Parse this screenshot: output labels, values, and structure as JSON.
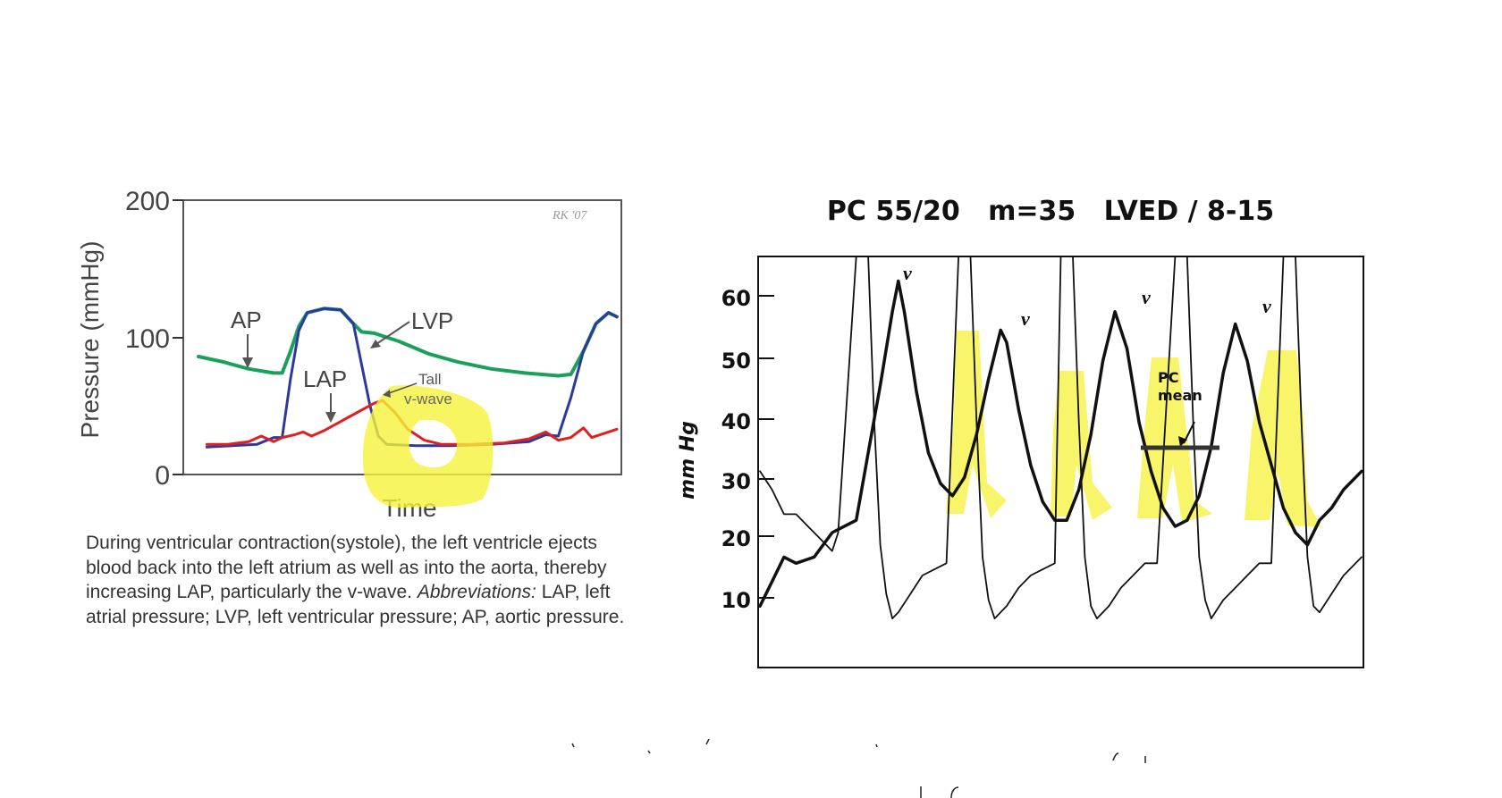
{
  "left_chart": {
    "chart_data": {
      "type": "line",
      "title": "",
      "xlabel": "Time",
      "ylabel": "Pressure (mmHg)",
      "ylim": [
        0,
        200
      ],
      "yticks": [
        "0",
        "100",
        "200"
      ],
      "grid": false,
      "signature": "RK '07",
      "series": [
        {
          "name": "AP",
          "color": "#1aa05a",
          "points": [
            [
              0,
              86
            ],
            [
              6,
              82
            ],
            [
              12,
              77
            ],
            [
              18,
              74
            ],
            [
              20,
              74
            ],
            [
              22,
              90
            ],
            [
              24,
              108
            ],
            [
              26,
              118
            ],
            [
              30,
              121
            ],
            [
              34,
              120
            ],
            [
              37,
              110
            ],
            [
              39,
              104
            ],
            [
              42,
              103
            ],
            [
              48,
              97
            ],
            [
              55,
              88
            ],
            [
              62,
              82
            ],
            [
              70,
              77
            ],
            [
              78,
              74
            ],
            [
              86,
              72
            ],
            [
              89,
              73
            ],
            [
              92,
              90
            ],
            [
              95,
              110
            ],
            [
              98,
              118
            ],
            [
              100,
              115
            ]
          ]
        },
        {
          "name": "LVP",
          "color": "#2d3a9c",
          "points": [
            [
              2,
              20
            ],
            [
              8,
              21
            ],
            [
              14,
              22
            ],
            [
              18,
              27
            ],
            [
              20,
              27
            ],
            [
              22,
              70
            ],
            [
              24,
              105
            ],
            [
              26,
              118
            ],
            [
              30,
              121
            ],
            [
              34,
              120
            ],
            [
              37,
              110
            ],
            [
              39,
              80
            ],
            [
              41,
              50
            ],
            [
              43,
              28
            ],
            [
              45,
              22
            ],
            [
              52,
              21
            ],
            [
              60,
              21
            ],
            [
              70,
              22
            ],
            [
              79,
              24
            ],
            [
              83,
              29
            ],
            [
              86,
              28
            ],
            [
              89,
              56
            ],
            [
              92,
              90
            ],
            [
              95,
              110
            ],
            [
              98,
              118
            ],
            [
              100,
              115
            ]
          ]
        },
        {
          "name": "LAP",
          "color": "#e02020",
          "points": [
            [
              2,
              22
            ],
            [
              7,
              22
            ],
            [
              12,
              24
            ],
            [
              15,
              28
            ],
            [
              18,
              24
            ],
            [
              20,
              27
            ],
            [
              23,
              29
            ],
            [
              25,
              31
            ],
            [
              27,
              28
            ],
            [
              30,
              32
            ],
            [
              36,
              42
            ],
            [
              42,
              52
            ],
            [
              44,
              54
            ],
            [
              47,
              45
            ],
            [
              50,
              33
            ],
            [
              54,
              25
            ],
            [
              58,
              22
            ],
            [
              65,
              22
            ],
            [
              73,
              23
            ],
            [
              79,
              26
            ],
            [
              83,
              31
            ],
            [
              86,
              25
            ],
            [
              89,
              27
            ],
            [
              92,
              34
            ],
            [
              94,
              27
            ],
            [
              97,
              30
            ],
            [
              100,
              33
            ]
          ]
        }
      ],
      "annotations": [
        {
          "text": "AP"
        },
        {
          "text": "LVP"
        },
        {
          "text": "LAP"
        },
        {
          "text": "Tall"
        },
        {
          "text": "v-wave"
        }
      ]
    },
    "caption": {
      "part1": "During ventricular contraction(systole), the left ventricle ejects blood back into the left atrium as well as into the aorta, thereby increasing LAP, particularly the v-wave.",
      "abbr_label": "Abbreviations:",
      "part2": "LAP, left atrial pressure; LVP, left ventricular pressure; AP, aortic pressure."
    }
  },
  "right_chart": {
    "chart_data": {
      "type": "line",
      "title": "PC 55/20   m=35   LVED / 8-15",
      "xlabel": "",
      "ylabel": "mm Hg",
      "ylim": [
        0,
        67
      ],
      "yticks": [
        "10",
        "20",
        "30",
        "40",
        "50",
        "60"
      ],
      "grid": false,
      "series": [
        {
          "name": "",
          "points": [
            [
              0,
              10
            ],
            [
              2,
              14
            ],
            [
              4,
              18
            ],
            [
              6,
              17
            ],
            [
              9,
              18
            ],
            [
              12,
              22
            ],
            [
              14,
              23
            ],
            [
              16,
              24
            ],
            [
              18,
              35
            ],
            [
              20,
              46
            ],
            [
              22,
              58
            ],
            [
              23,
              63
            ],
            [
              24,
              58
            ],
            [
              26,
              45
            ],
            [
              28,
              35
            ],
            [
              30,
              30
            ],
            [
              32,
              28
            ],
            [
              34,
              31
            ],
            [
              36,
              38
            ],
            [
              38,
              47
            ],
            [
              40,
              55
            ],
            [
              41,
              53
            ],
            [
              43,
              42
            ],
            [
              45,
              33
            ],
            [
              47,
              27
            ],
            [
              49,
              24
            ],
            [
              51,
              24
            ],
            [
              53,
              29
            ],
            [
              55,
              38
            ],
            [
              57,
              50
            ],
            [
              59,
              58
            ],
            [
              61,
              52
            ],
            [
              63,
              40
            ],
            [
              65,
              32
            ],
            [
              67,
              26
            ],
            [
              69,
              23
            ],
            [
              71,
              24
            ],
            [
              73,
              28
            ],
            [
              75,
              36
            ],
            [
              77,
              48
            ],
            [
              79,
              56
            ],
            [
              81,
              50
            ],
            [
              83,
              40
            ],
            [
              85,
              33
            ],
            [
              87,
              26
            ],
            [
              89,
              22
            ],
            [
              91,
              20
            ],
            [
              93,
              24
            ],
            [
              95,
              26
            ],
            [
              97,
              29
            ],
            [
              99,
              31
            ],
            [
              100,
              32
            ]
          ]
        },
        {
          "name": "",
          "points": [
            [
              0,
              32
            ],
            [
              2,
              29
            ],
            [
              4,
              25
            ],
            [
              6,
              25
            ],
            [
              8,
              23
            ],
            [
              10,
              21
            ],
            [
              12,
              19
            ],
            [
              13,
              22
            ],
            [
              16,
              80
            ],
            [
              18,
              80
            ],
            [
              19,
              40
            ],
            [
              20,
              20
            ],
            [
              21,
              12
            ],
            [
              22,
              8
            ],
            [
              23,
              9
            ],
            [
              25,
              12
            ],
            [
              27,
              15
            ],
            [
              29,
              16
            ],
            [
              31,
              17
            ],
            [
              33,
              80
            ],
            [
              35,
              80
            ],
            [
              36,
              40
            ],
            [
              37,
              18
            ],
            [
              38,
              11
            ],
            [
              39,
              8
            ],
            [
              41,
              10
            ],
            [
              43,
              13
            ],
            [
              45,
              15
            ],
            [
              47,
              16
            ],
            [
              49,
              17
            ],
            [
              50,
              80
            ],
            [
              52,
              80
            ],
            [
              53,
              40
            ],
            [
              54,
              18
            ],
            [
              55,
              10
            ],
            [
              56,
              8
            ],
            [
              58,
              10
            ],
            [
              60,
              13
            ],
            [
              62,
              15
            ],
            [
              64,
              17
            ],
            [
              66,
              17
            ],
            [
              69,
              80
            ],
            [
              71,
              80
            ],
            [
              72,
              40
            ],
            [
              73,
              18
            ],
            [
              74,
              11
            ],
            [
              75,
              8
            ],
            [
              77,
              11
            ],
            [
              79,
              13
            ],
            [
              81,
              15
            ],
            [
              83,
              17
            ],
            [
              85,
              17
            ],
            [
              87,
              80
            ],
            [
              89,
              80
            ],
            [
              90,
              40
            ],
            [
              91,
              18
            ],
            [
              92,
              10
            ],
            [
              93,
              9
            ],
            [
              95,
              12
            ],
            [
              97,
              15
            ],
            [
              99,
              17
            ],
            [
              100,
              18
            ]
          ]
        }
      ],
      "annotations": [
        {
          "text": "v"
        },
        {
          "text": "v"
        },
        {
          "text": "v"
        },
        {
          "text": "v"
        },
        {
          "text": "PC"
        },
        {
          "text": "mean"
        }
      ],
      "highlight_color": "#f5f23a"
    }
  },
  "colors": {
    "highlight": "#f5f23a",
    "axis": "#333333",
    "ink": "#111111"
  }
}
